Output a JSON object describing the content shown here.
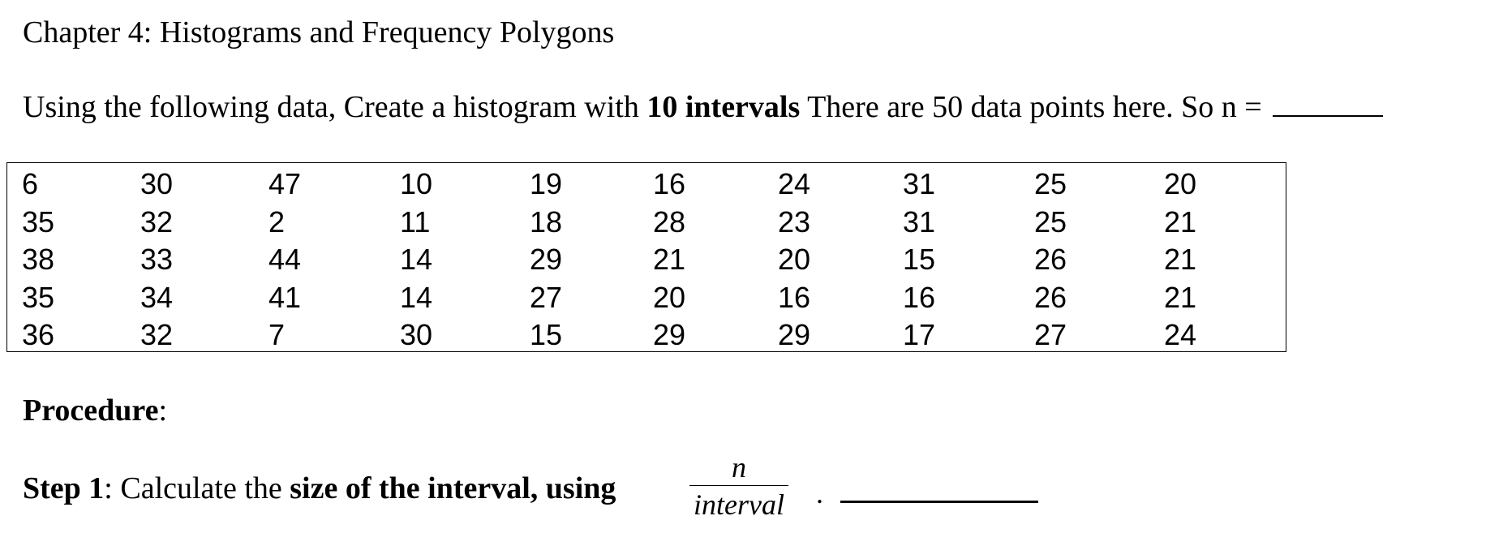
{
  "title": "Chapter 4: Histograms and Frequency Polygons",
  "intro": {
    "part1": "Using the following data, Create a histogram with ",
    "bold": "10 intervals",
    "part2": "  There are 50 data points here. So n = "
  },
  "data_rows": [
    [
      "6",
      "30",
      "47",
      "10",
      "19",
      "16",
      "24",
      "31",
      "25",
      "20"
    ],
    [
      "35",
      "32",
      "2",
      "11",
      "18",
      "28",
      "23",
      "31",
      "25",
      "21"
    ],
    [
      "38",
      "33",
      "44",
      "14",
      "29",
      "21",
      "20",
      "15",
      "26",
      "21"
    ],
    [
      "35",
      "34",
      "41",
      "14",
      "27",
      "20",
      "16",
      "16",
      "26",
      "21"
    ],
    [
      "36",
      "32",
      "7",
      "30",
      "15",
      "29",
      "29",
      "17",
      "27",
      "24"
    ]
  ],
  "procedure": {
    "label": "Procedure",
    "colon": ":"
  },
  "step1": {
    "label": "Step 1",
    "text": ": Calculate the ",
    "bold": "size of the interval, using",
    "fraction_numerator": "n",
    "fraction_denominator": "interval",
    "dot": "."
  }
}
